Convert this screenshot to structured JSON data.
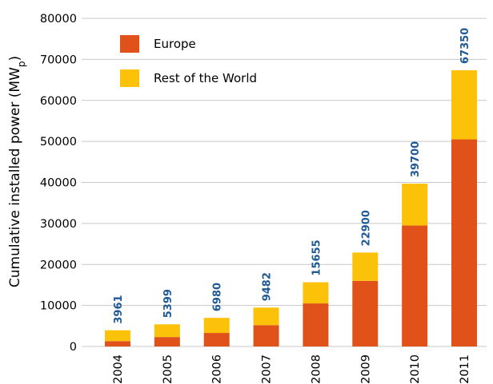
{
  "chart_data": {
    "type": "bar",
    "stacked": true,
    "categories": [
      "2004",
      "2005",
      "2006",
      "2007",
      "2008",
      "2009",
      "2010",
      "2011"
    ],
    "series": [
      {
        "name": "Europe",
        "color": "#e0521a",
        "values": [
          1300,
          2300,
          3300,
          5200,
          10500,
          16000,
          29500,
          50500
        ]
      },
      {
        "name": "Rest of the World",
        "color": "#fcc20a",
        "values": [
          2661,
          3099,
          3680,
          4282,
          5155,
          6900,
          10200,
          16850
        ]
      }
    ],
    "totals": [
      "3961",
      "5399",
      "6980",
      "9482",
      "15655",
      "22900",
      "39700",
      "67350"
    ],
    "total_values": [
      3961,
      5399,
      6980,
      9482,
      15655,
      22900,
      39700,
      67350
    ],
    "ylabel": "Cumulative installed power (MWp)",
    "ylabel_main": "Cumulative installed power (MW",
    "ylabel_sub": "p",
    "ylabel_end": ")",
    "ylim": [
      0,
      80000
    ],
    "yticks": [
      "0",
      "10000",
      "20000",
      "30000",
      "40000",
      "50000",
      "60000",
      "70000",
      "80000"
    ],
    "ytick_values": [
      0,
      10000,
      20000,
      30000,
      40000,
      50000,
      60000,
      70000,
      80000
    ],
    "grid": true,
    "legend_position": "top-left",
    "gridline_color": "#c8c8c8",
    "total_label_color": "#1f5a96"
  }
}
